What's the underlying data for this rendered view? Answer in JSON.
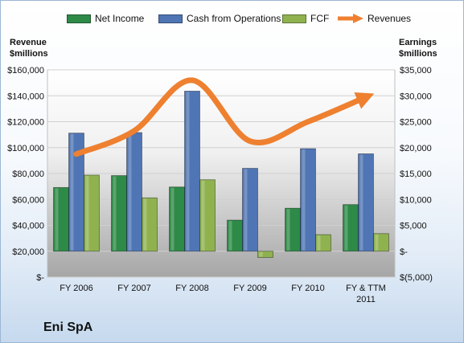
{
  "chart_data": {
    "type": "bar",
    "title": "Eni SpA",
    "categories": [
      "FY 2006",
      "FY 2007",
      "FY 2008",
      "FY 2009",
      "FY 2010",
      "FY & TTM 2011"
    ],
    "category_lines": [
      [
        "FY 2006"
      ],
      [
        "FY 2007"
      ],
      [
        "FY 2008"
      ],
      [
        "FY 2009"
      ],
      [
        "FY 2010"
      ],
      [
        "FY & TTM",
        "2011"
      ]
    ],
    "left_axis": {
      "label": "Revenue $millions",
      "label_lines": [
        "Revenue",
        "$millions"
      ],
      "ylim": [
        0,
        160000
      ],
      "ticks": [
        0,
        20000,
        40000,
        60000,
        80000,
        100000,
        120000,
        140000,
        160000
      ],
      "tick_labels": [
        "$-",
        "$20,000",
        "$40,000",
        "$60,000",
        "$80,000",
        "$100,000",
        "$120,000",
        "$140,000",
        "$160,000"
      ]
    },
    "right_axis": {
      "label": "Earnings $millions",
      "label_lines": [
        "Earnings",
        "$millions"
      ],
      "ylim": [
        -5000,
        35000
      ],
      "ticks": [
        -5000,
        0,
        5000,
        10000,
        15000,
        20000,
        25000,
        30000,
        35000
      ],
      "tick_labels": [
        "$(5,000)",
        "$-",
        "$5,000",
        "$10,000",
        "$15,000",
        "$20,000",
        "$25,000",
        "$30,000",
        "$35,000"
      ]
    },
    "series": [
      {
        "name": "Net Income",
        "type": "bar",
        "axis": "right",
        "color": "#2e8a47",
        "values": [
          12300,
          14600,
          12400,
          6000,
          8300,
          9000
        ]
      },
      {
        "name": "Cash from Operations",
        "type": "bar",
        "axis": "right",
        "color": "#4f75b4",
        "values": [
          22800,
          22900,
          30900,
          16000,
          19800,
          18800
        ]
      },
      {
        "name": "FCF",
        "type": "bar",
        "axis": "right",
        "color": "#8fb24f",
        "values": [
          14700,
          10300,
          13800,
          -1200,
          3200,
          3400
        ]
      },
      {
        "name": "Revenues",
        "type": "line",
        "axis": "left",
        "color": "#ee8030",
        "values": [
          95000,
          113000,
          152000,
          105000,
          120000,
          139000
        ]
      }
    ],
    "grid": true,
    "legend_position": "top"
  },
  "colors": {
    "plot_background_top": "#ffffff",
    "plot_background_bottom": "#a9a9a9",
    "gridline": "#d0d0d0"
  }
}
